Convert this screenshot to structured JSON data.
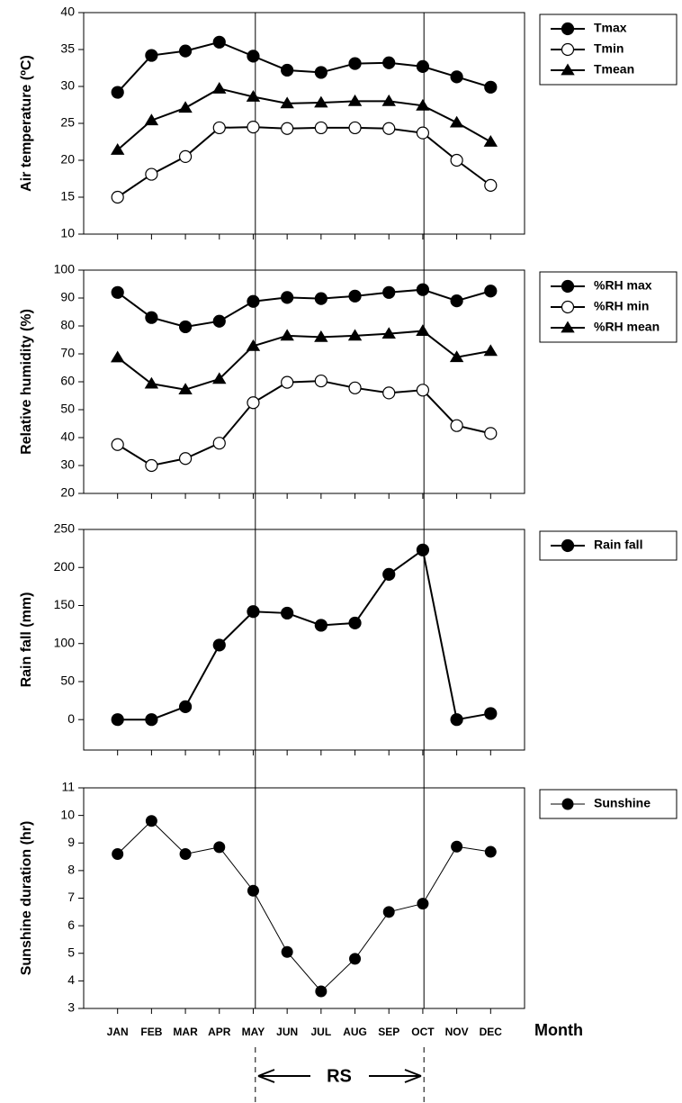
{
  "chart_data": [
    {
      "type": "line",
      "ylabel": "Air temperature (ºC)",
      "ylim": [
        10,
        40
      ],
      "yticks": [
        10,
        15,
        20,
        25,
        30,
        35,
        40
      ],
      "line_width": 2,
      "legend": "right",
      "series": [
        {
          "name": "Tmax",
          "color": "#000000",
          "fill": "#000000",
          "marker": "circle",
          "values": [
            29.2,
            34.2,
            34.8,
            36.0,
            34.1,
            32.2,
            31.9,
            33.1,
            33.2,
            32.7,
            31.3,
            29.9
          ]
        },
        {
          "name": "Tmin",
          "color": "#000000",
          "fill": "#ffffff",
          "marker": "circle",
          "values": [
            15.0,
            18.1,
            20.5,
            24.4,
            24.5,
            24.3,
            24.4,
            24.4,
            24.3,
            23.7,
            20.0,
            16.6
          ]
        },
        {
          "name": "Tmean",
          "color": "#000000",
          "fill": "#000000",
          "marker": "triangle",
          "values": [
            21.4,
            25.4,
            27.1,
            29.7,
            28.6,
            27.7,
            27.8,
            28.0,
            28.0,
            27.4,
            25.1,
            22.5
          ]
        }
      ]
    },
    {
      "type": "line",
      "ylabel": "Relative humidity (%)",
      "ylim": [
        20,
        100
      ],
      "yticks": [
        20,
        30,
        40,
        50,
        60,
        70,
        80,
        90,
        100
      ],
      "line_width": 2,
      "legend": "right",
      "series": [
        {
          "name": "%RH max",
          "color": "#000000",
          "fill": "#000000",
          "marker": "circle",
          "values": [
            92,
            83,
            79.7,
            81.7,
            88.8,
            90.2,
            89.8,
            90.7,
            92,
            93,
            89,
            92.5
          ]
        },
        {
          "name": "%RH min",
          "color": "#000000",
          "fill": "#ffffff",
          "marker": "circle",
          "values": [
            37.5,
            30,
            32.5,
            38,
            52.5,
            59.8,
            60.3,
            57.8,
            56,
            57,
            44.3,
            41.5
          ]
        },
        {
          "name": "%RH mean",
          "color": "#000000",
          "fill": "#000000",
          "marker": "triangle",
          "values": [
            68.7,
            59.3,
            57.2,
            61,
            72.8,
            76.5,
            76,
            76.5,
            77.2,
            78.2,
            68.8,
            71
          ]
        }
      ]
    },
    {
      "type": "line",
      "ylabel": "Rain fall (mm)",
      "ylim": [
        -40,
        250
      ],
      "yticks": [
        0,
        50,
        100,
        150,
        200,
        250
      ],
      "line_width": 2,
      "legend": "right",
      "series": [
        {
          "name": "Rain fall",
          "color": "#000000",
          "fill": "#000000",
          "marker": "circle",
          "values": [
            0,
            0,
            17,
            98,
            142,
            140,
            124,
            127,
            191,
            223,
            0,
            8
          ]
        }
      ]
    },
    {
      "type": "line",
      "ylabel": "Sunshine duration (hr)",
      "ylim": [
        3,
        11
      ],
      "yticks": [
        3,
        4,
        5,
        6,
        7,
        8,
        9,
        10,
        11
      ],
      "line_width": 1,
      "legend": "right",
      "categories": [
        "JAN",
        "FEB",
        "MAR",
        "APR",
        "MAY",
        "JUN",
        "JUL",
        "AUG",
        "SEP",
        "OCT",
        "NOV",
        "DEC"
      ],
      "xlabel": "Month",
      "annotation": "RS",
      "series": [
        {
          "name": "Sunshine",
          "color": "#000000",
          "fill": "#000000",
          "marker": "circle",
          "values": [
            8.6,
            9.8,
            8.6,
            8.85,
            7.27,
            5.05,
            3.62,
            4.8,
            6.5,
            6.8,
            8.87,
            8.68
          ]
        }
      ]
    }
  ]
}
